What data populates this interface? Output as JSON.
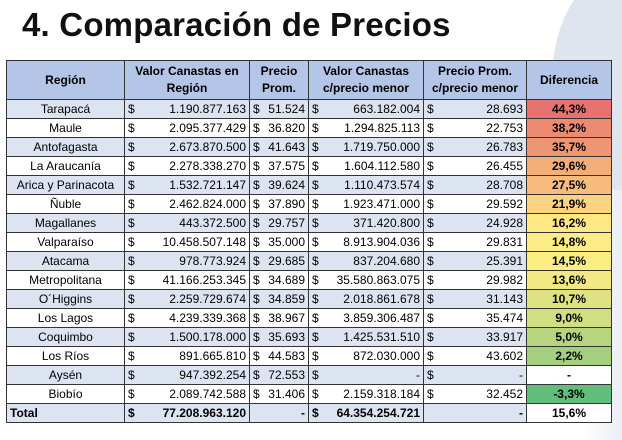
{
  "title": "4. Comparación de Precios",
  "headers": [
    "Región",
    "Valor Canastas en Región",
    "Precio Prom.",
    "Valor Canastas c/precio menor",
    "Precio Prom. c/precio menor",
    "Diferencia"
  ],
  "currency": "$",
  "rows": [
    {
      "region": "Tarapacá",
      "valor": "1.190.877.163",
      "precio": "51.524",
      "valor_menor": "663.182.004",
      "precio_menor": "28.693",
      "diff": "44,3%",
      "color": "#e8726f"
    },
    {
      "region": "Maule",
      "valor": "2.095.377.429",
      "precio": "36.820",
      "valor_menor": "1.294.825.113",
      "precio_menor": "22.753",
      "diff": "38,2%",
      "color": "#ec8a72"
    },
    {
      "region": "Antofagasta",
      "valor": "2.673.870.500",
      "precio": "41.643",
      "valor_menor": "1.719.750.000",
      "precio_menor": "26.783",
      "diff": "35,7%",
      "color": "#ee9574"
    },
    {
      "region": "La Araucanía",
      "valor": "2.278.338.270",
      "precio": "37.575",
      "valor_menor": "1.604.112.580",
      "precio_menor": "26.455",
      "diff": "29,6%",
      "color": "#f4ae78"
    },
    {
      "region": "Arica y Parinacota",
      "valor": "1.532.721.147",
      "precio": "39.624",
      "valor_menor": "1.110.473.574",
      "precio_menor": "28.708",
      "diff": "27,5%",
      "color": "#f7bb7b"
    },
    {
      "region": "Ñuble",
      "valor": "2.462.824.000",
      "precio": "37.890",
      "valor_menor": "1.923.471.000",
      "precio_menor": "29.592",
      "diff": "21,9%",
      "color": "#fcd47f"
    },
    {
      "region": "Magallanes",
      "valor": "443.372.500",
      "precio": "29.757",
      "valor_menor": "371.420.800",
      "precio_menor": "24.928",
      "diff": "16,2%",
      "color": "#fde883"
    },
    {
      "region": "Valparaíso",
      "valor": "10.458.507.148",
      "precio": "35.000",
      "valor_menor": "8.913.904.036",
      "precio_menor": "29.831",
      "diff": "14,8%",
      "color": "#fcec84"
    },
    {
      "region": "Atacama",
      "valor": "978.773.924",
      "precio": "29.685",
      "valor_menor": "837.204.680",
      "precio_menor": "25.391",
      "diff": "14,5%",
      "color": "#fbec84"
    },
    {
      "region": "Metropolitana",
      "valor": "41.166.253.345",
      "precio": "34.689",
      "valor_menor": "35.580.863.075",
      "precio_menor": "29.982",
      "diff": "13,6%",
      "color": "#f2e884"
    },
    {
      "region": "O´Higgins",
      "valor": "2.259.729.674",
      "precio": "34.859",
      "valor_menor": "2.018.861.678",
      "precio_menor": "31.143",
      "diff": "10,7%",
      "color": "#dfe282"
    },
    {
      "region": "Los Lagos",
      "valor": "4.239.339.368",
      "precio": "38.967",
      "valor_menor": "3.859.306.487",
      "precio_menor": "35.474",
      "diff": "9,0%",
      "color": "#d2de81"
    },
    {
      "region": "Coquimbo",
      "valor": "1.500.178.000",
      "precio": "35.693",
      "valor_menor": "1.425.531.510",
      "precio_menor": "33.917",
      "diff": "5,0%",
      "color": "#b7d57f"
    },
    {
      "region": "Los Ríos",
      "valor": "891.665.810",
      "precio": "44.583",
      "valor_menor": "872.030.000",
      "precio_menor": "43.602",
      "diff": "2,2%",
      "color": "#a3cf7e"
    },
    {
      "region": "Aysén",
      "valor": "947.392.254",
      "precio": "72.553",
      "valor_menor": "-",
      "precio_menor": "-",
      "diff": "-",
      "color": "#ffffff"
    },
    {
      "region": "Biobío",
      "valor": "2.089.742.588",
      "precio": "31.406",
      "valor_menor": "2.159.318.184",
      "precio_menor": "32.452",
      "diff": "-3,3%",
      "color": "#63be7b"
    }
  ],
  "total": {
    "label": "Total",
    "valor": "77.208.963.120",
    "precio": "-",
    "valor_menor": "64.354.254.721",
    "precio_menor": "-",
    "diff": "15,6%"
  }
}
